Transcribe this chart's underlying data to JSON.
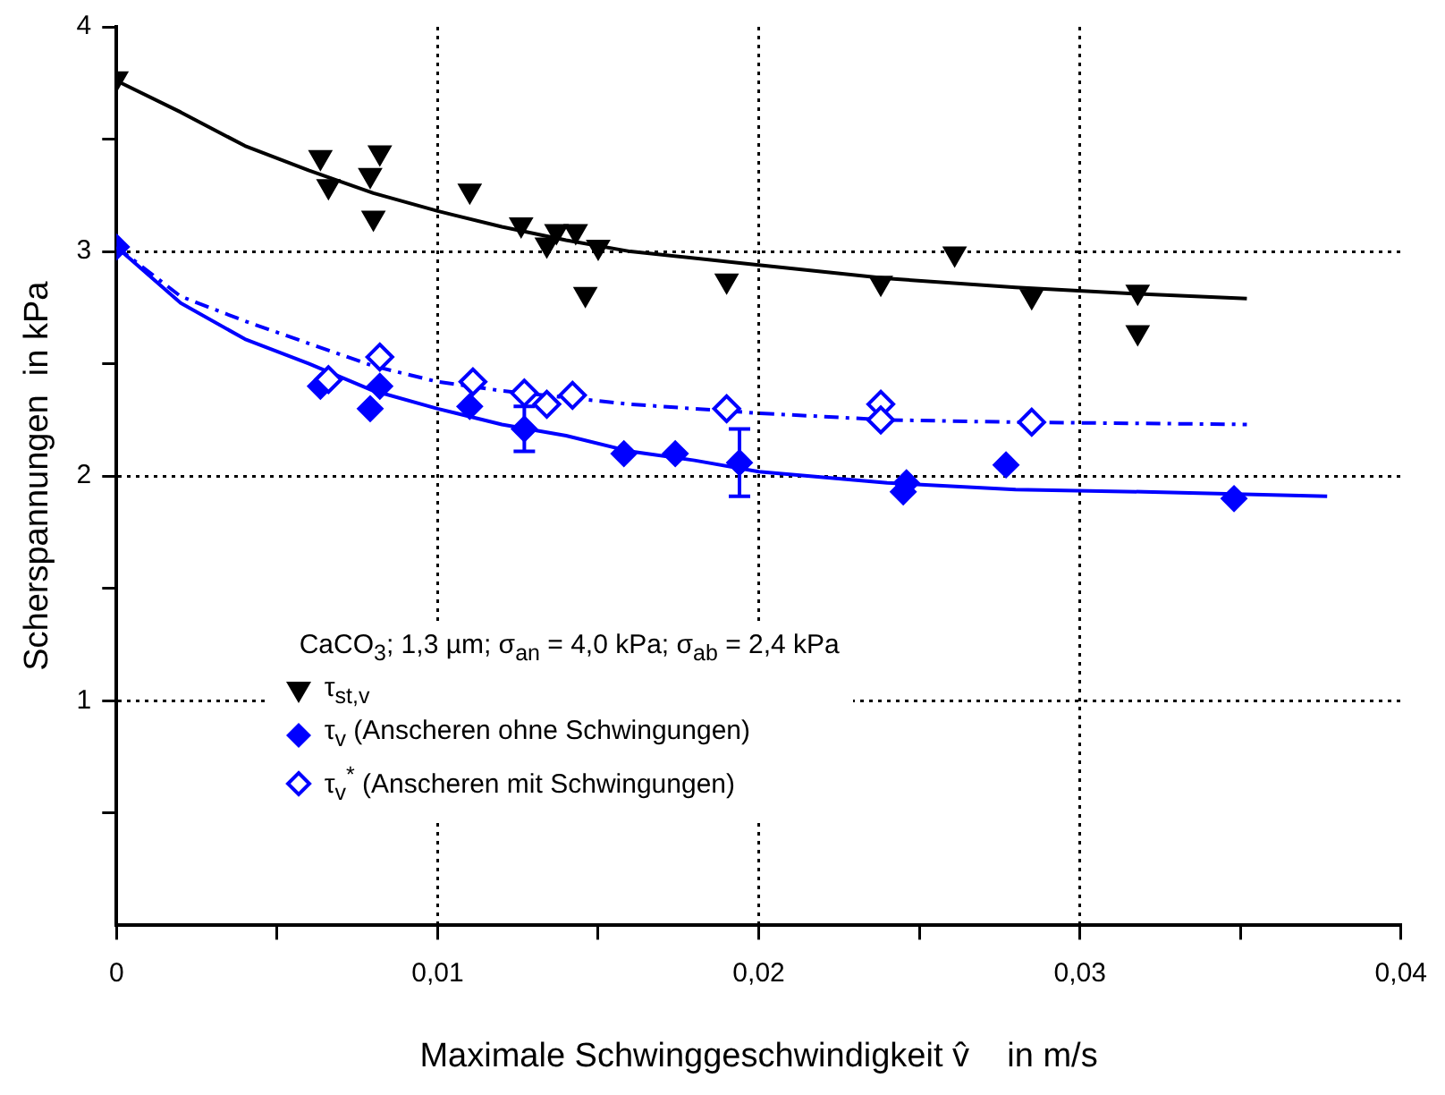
{
  "chart_data": {
    "type": "scatter",
    "xlabel": "Maximale Schwinggeschwindigkeit v̂    in m/s",
    "ylabel": "Scherspannungen  in kPa",
    "legend_title": "CaCO$_{3}$; 1,3 µm;  σ$_{an}$ = 4,0 kPa;  σ$_{ab}$ = 2,4 kPa",
    "xlim": [
      0,
      0.04
    ],
    "xticks": [
      0,
      {
        "value": 0.005,
        "label": null
      },
      {
        "value": 0.01,
        "label": "0,01"
      },
      {
        "value": 0.015,
        "label": null
      },
      {
        "value": 0.02,
        "label": "0,02"
      },
      {
        "value": 0.025,
        "label": null
      },
      {
        "value": 0.03,
        "label": "0,03"
      },
      {
        "value": 0.035,
        "label": null
      },
      {
        "value": 0.04,
        "label": "0,04"
      }
    ],
    "ylim": [
      0,
      4
    ],
    "yticks": [
      {
        "value": 0.5,
        "label": null
      },
      1,
      {
        "value": 1.5,
        "label": null
      },
      2,
      {
        "value": 2.5,
        "label": null
      },
      3,
      {
        "value": 3.5,
        "label": null
      },
      4
    ],
    "grid": true,
    "legend": "bottom",
    "series": [
      {
        "name": "τ$_{st,v}$",
        "marker": "triangle",
        "color": "#000000",
        "x": [
          0,
          0.00635,
          0.0066,
          0.0082,
          0.0079,
          0.008,
          0.011,
          0.0126,
          0.0134,
          0.0137,
          0.0143,
          0.015,
          0.0146,
          0.019,
          0.0238,
          0.0261,
          0.0285,
          0.0318,
          0.0318
        ],
        "values": [
          3.77,
          3.42,
          3.29,
          3.44,
          3.34,
          3.15,
          3.27,
          3.12,
          3.03,
          3.09,
          3.09,
          3.02,
          2.81,
          2.87,
          2.86,
          2.99,
          2.8,
          2.82,
          2.64
        ]
      },
      {
        "name": "τ$_{v}$ (Anscheren ohne Schwingungen)",
        "marker": "diamond",
        "color": "#0000ff",
        "x": [
          0,
          0.00635,
          0.0079,
          0.0082,
          0.011,
          0.0127,
          0.0158,
          0.0174,
          0.0194,
          0.0246,
          0.0245,
          0.0277,
          0.0348
        ],
        "values": [
          3.02,
          2.4,
          2.3,
          2.4,
          2.31,
          2.21,
          2.1,
          2.1,
          2.06,
          1.97,
          1.93,
          2.05,
          1.9
        ],
        "errors": [
          null,
          null,
          null,
          null,
          null,
          0.1,
          null,
          null,
          0.15,
          null,
          null,
          null,
          null
        ]
      },
      {
        "name": "τ$_{v}$$^{*}$ (Anscheren mit Schwingungen)",
        "marker": "diamond-open",
        "color": "#0000ff",
        "x": [
          0.0066,
          0.0082,
          0.0111,
          0.0127,
          0.0134,
          0.0142,
          0.019,
          0.0238,
          0.0238,
          0.0285
        ],
        "values": [
          2.43,
          2.53,
          2.42,
          2.37,
          2.32,
          2.36,
          2.3,
          2.32,
          2.25,
          2.24
        ]
      },
      {
        "type": "line",
        "marker": "none",
        "line_style": "solid",
        "color": "#000000",
        "x": [
          0,
          0.002,
          0.004,
          0.006,
          0.008,
          0.01,
          0.012,
          0.014,
          0.016,
          0.02,
          0.024,
          0.028,
          0.032,
          0.0352
        ],
        "values": [
          3.76,
          3.62,
          3.47,
          3.36,
          3.26,
          3.18,
          3.11,
          3.05,
          3.0,
          2.94,
          2.88,
          2.84,
          2.81,
          2.79
        ]
      },
      {
        "type": "line",
        "marker": "none",
        "line_style": "solid",
        "color": "#0000ff",
        "x": [
          0,
          0.002,
          0.004,
          0.006,
          0.008,
          0.01,
          0.012,
          0.014,
          0.016,
          0.018,
          0.02,
          0.024,
          0.028,
          0.032,
          0.0377
        ],
        "values": [
          3.02,
          2.77,
          2.61,
          2.5,
          2.38,
          2.3,
          2.23,
          2.18,
          2.11,
          2.07,
          2.02,
          1.97,
          1.94,
          1.93,
          1.91
        ]
      },
      {
        "type": "line",
        "marker": "none",
        "line_style": "dashed",
        "color": "#0000ff",
        "x": [
          0,
          0.002,
          0.004,
          0.006,
          0.008,
          0.01,
          0.012,
          0.014,
          0.016,
          0.02,
          0.024,
          0.028,
          0.0352
        ],
        "values": [
          3.02,
          2.8,
          2.69,
          2.59,
          2.49,
          2.42,
          2.38,
          2.35,
          2.32,
          2.28,
          2.25,
          2.24,
          2.23
        ]
      }
    ]
  }
}
